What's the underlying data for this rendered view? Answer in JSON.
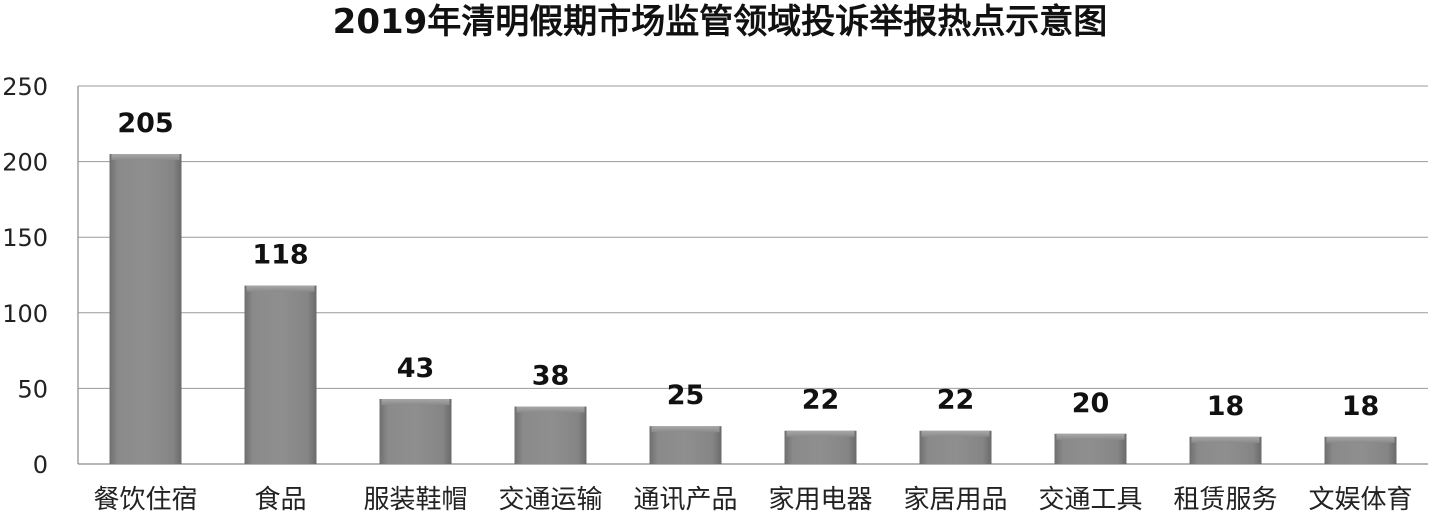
{
  "chart_data": {
    "type": "bar",
    "title": "2019年清明假期市场监管领域投诉举报热点示意图",
    "categories": [
      "餐饮住宿",
      "食品",
      "服装鞋帽",
      "交通运输",
      "通讯产品",
      "家用电器",
      "家居用品",
      "交通工具",
      "租赁服务",
      "文娱体育"
    ],
    "values": [
      205,
      118,
      43,
      38,
      25,
      22,
      22,
      20,
      18,
      18
    ],
    "ylim": [
      0,
      250
    ],
    "yticks": [
      "0",
      "50",
      "100",
      "150",
      "200",
      "250"
    ],
    "grid": true,
    "bar_color": "#858585"
  }
}
